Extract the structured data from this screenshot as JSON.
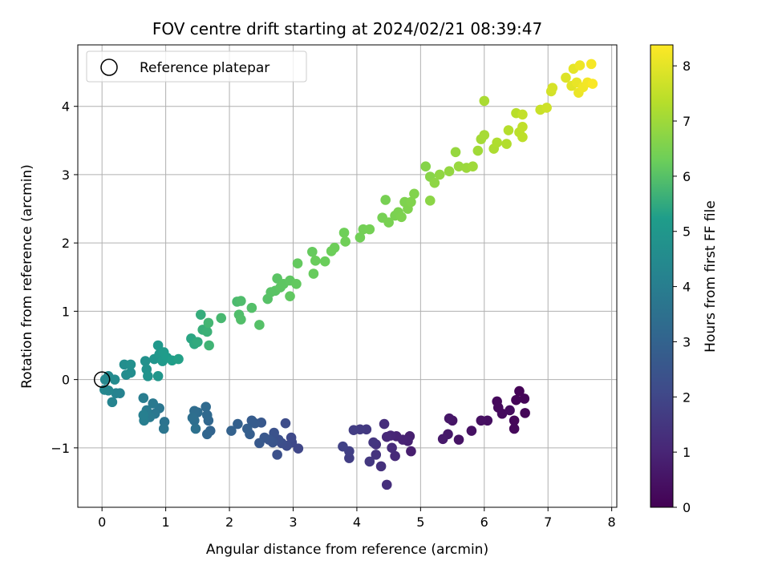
{
  "chart_data": {
    "type": "scatter",
    "title": "FOV centre drift starting at 2024/02/21 08:39:47",
    "xlabel": "Angular distance from reference (arcmin)",
    "ylabel": "Rotation from reference (arcmin)",
    "xlim": [
      -0.38,
      8.08
    ],
    "ylim": [
      -1.87,
      4.9
    ],
    "xticks": [
      0,
      1,
      2,
      3,
      4,
      5,
      6,
      7,
      8
    ],
    "yticks": [
      -1,
      0,
      1,
      2,
      3,
      4
    ],
    "grid": true,
    "legend": {
      "placement": "top-left",
      "label": "Reference platepar"
    },
    "reference_point": {
      "x": 0,
      "y": 0
    },
    "colorbar": {
      "label": "Hours from first FF file",
      "range": [
        0,
        8.38
      ],
      "ticks": [
        0,
        1,
        2,
        3,
        4,
        5,
        6,
        7,
        8
      ],
      "colormap": "viridis",
      "colors": [
        "#440154",
        "#482777",
        "#3f4a8a",
        "#31678e",
        "#26838f",
        "#1f9d8a",
        "#6cce5a",
        "#b6de2b",
        "#fee825"
      ]
    },
    "points": [
      {
        "x": 6.55,
        "y": -0.17,
        "t": 0.05
      },
      {
        "x": 6.63,
        "y": -0.28,
        "t": 0.08
      },
      {
        "x": 6.5,
        "y": -0.3,
        "t": 0.1
      },
      {
        "x": 6.64,
        "y": -0.49,
        "t": 0.13
      },
      {
        "x": 6.47,
        "y": -0.6,
        "t": 0.16
      },
      {
        "x": 6.47,
        "y": -0.72,
        "t": 0.19
      },
      {
        "x": 6.2,
        "y": -0.32,
        "t": 0.22
      },
      {
        "x": 6.22,
        "y": -0.41,
        "t": 0.25
      },
      {
        "x": 6.28,
        "y": -0.5,
        "t": 0.28
      },
      {
        "x": 6.4,
        "y": -0.45,
        "t": 0.31
      },
      {
        "x": 6.05,
        "y": -0.6,
        "t": 0.36
      },
      {
        "x": 5.95,
        "y": -0.6,
        "t": 0.4
      },
      {
        "x": 5.8,
        "y": -0.75,
        "t": 0.45
      },
      {
        "x": 5.6,
        "y": -0.88,
        "t": 0.5
      },
      {
        "x": 5.5,
        "y": -0.6,
        "t": 0.55
      },
      {
        "x": 5.45,
        "y": -0.57,
        "t": 0.6
      },
      {
        "x": 5.43,
        "y": -0.8,
        "t": 0.64
      },
      {
        "x": 5.35,
        "y": -0.87,
        "t": 0.7
      },
      {
        "x": 4.85,
        "y": -1.05,
        "t": 0.8
      },
      {
        "x": 4.83,
        "y": -0.83,
        "t": 0.85
      },
      {
        "x": 4.8,
        "y": -0.9,
        "t": 0.9
      },
      {
        "x": 4.72,
        "y": -0.88,
        "t": 0.95
      },
      {
        "x": 4.62,
        "y": -0.83,
        "t": 1.0
      },
      {
        "x": 4.53,
        "y": -0.82,
        "t": 1.05
      },
      {
        "x": 4.47,
        "y": -0.84,
        "t": 1.1
      },
      {
        "x": 4.6,
        "y": -1.12,
        "t": 1.15
      },
      {
        "x": 4.55,
        "y": -1.0,
        "t": 1.2
      },
      {
        "x": 4.43,
        "y": -0.65,
        "t": 1.25
      },
      {
        "x": 4.47,
        "y": -1.54,
        "t": 1.3
      },
      {
        "x": 4.38,
        "y": -1.27,
        "t": 1.35
      },
      {
        "x": 4.3,
        "y": -0.95,
        "t": 1.4
      },
      {
        "x": 4.3,
        "y": -1.1,
        "t": 1.45
      },
      {
        "x": 4.26,
        "y": -0.92,
        "t": 1.5
      },
      {
        "x": 4.2,
        "y": -1.2,
        "t": 1.55
      },
      {
        "x": 4.15,
        "y": -0.73,
        "t": 1.6
      },
      {
        "x": 4.05,
        "y": -0.73,
        "t": 1.65
      },
      {
        "x": 3.95,
        "y": -0.74,
        "t": 1.7
      },
      {
        "x": 3.88,
        "y": -1.15,
        "t": 1.75
      },
      {
        "x": 3.88,
        "y": -1.05,
        "t": 1.8
      },
      {
        "x": 3.78,
        "y": -0.98,
        "t": 1.85
      },
      {
        "x": 3.08,
        "y": -1.01,
        "t": 2.0
      },
      {
        "x": 2.98,
        "y": -0.92,
        "t": 2.05
      },
      {
        "x": 2.97,
        "y": -0.85,
        "t": 2.1
      },
      {
        "x": 2.9,
        "y": -0.97,
        "t": 2.15
      },
      {
        "x": 2.88,
        "y": -0.64,
        "t": 2.2
      },
      {
        "x": 2.82,
        "y": -0.93,
        "t": 2.25
      },
      {
        "x": 2.77,
        "y": -0.88,
        "t": 2.3
      },
      {
        "x": 2.75,
        "y": -1.1,
        "t": 2.35
      },
      {
        "x": 2.7,
        "y": -0.78,
        "t": 2.4
      },
      {
        "x": 2.68,
        "y": -0.92,
        "t": 2.45
      },
      {
        "x": 2.62,
        "y": -0.88,
        "t": 2.5
      },
      {
        "x": 2.55,
        "y": -0.85,
        "t": 2.55
      },
      {
        "x": 2.5,
        "y": -0.63,
        "t": 2.6
      },
      {
        "x": 2.47,
        "y": -0.93,
        "t": 2.65
      },
      {
        "x": 2.4,
        "y": -0.64,
        "t": 2.7
      },
      {
        "x": 2.35,
        "y": -0.6,
        "t": 2.75
      },
      {
        "x": 2.32,
        "y": -0.8,
        "t": 2.8
      },
      {
        "x": 2.28,
        "y": -0.72,
        "t": 2.85
      },
      {
        "x": 2.13,
        "y": -0.65,
        "t": 2.9
      },
      {
        "x": 2.03,
        "y": -0.75,
        "t": 2.95
      },
      {
        "x": 1.7,
        "y": -0.75,
        "t": 3.05
      },
      {
        "x": 1.65,
        "y": -0.8,
        "t": 3.1
      },
      {
        "x": 1.67,
        "y": -0.6,
        "t": 3.15
      },
      {
        "x": 1.65,
        "y": -0.52,
        "t": 3.2
      },
      {
        "x": 1.63,
        "y": -0.4,
        "t": 3.25
      },
      {
        "x": 1.5,
        "y": -0.48,
        "t": 3.3
      },
      {
        "x": 1.45,
        "y": -0.46,
        "t": 3.35
      },
      {
        "x": 1.45,
        "y": -0.6,
        "t": 3.4
      },
      {
        "x": 1.42,
        "y": -0.56,
        "t": 3.45
      },
      {
        "x": 1.47,
        "y": -0.72,
        "t": 3.5
      },
      {
        "x": 0.98,
        "y": -0.62,
        "t": 3.6
      },
      {
        "x": 0.97,
        "y": -0.72,
        "t": 3.65
      },
      {
        "x": 0.9,
        "y": -0.42,
        "t": 3.7
      },
      {
        "x": 0.83,
        "y": -0.5,
        "t": 3.75
      },
      {
        "x": 0.8,
        "y": -0.35,
        "t": 3.8
      },
      {
        "x": 0.75,
        "y": -0.55,
        "t": 3.85
      },
      {
        "x": 0.7,
        "y": -0.45,
        "t": 3.9
      },
      {
        "x": 0.65,
        "y": -0.27,
        "t": 3.95
      },
      {
        "x": 0.66,
        "y": -0.6,
        "t": 4.0
      },
      {
        "x": 0.65,
        "y": -0.52,
        "t": 4.05
      },
      {
        "x": 0.28,
        "y": -0.2,
        "t": 4.15
      },
      {
        "x": 0.22,
        "y": -0.2,
        "t": 4.2
      },
      {
        "x": 0.16,
        "y": -0.33,
        "t": 4.25
      },
      {
        "x": 0.1,
        "y": -0.16,
        "t": 4.3
      },
      {
        "x": 0.04,
        "y": -0.15,
        "t": 4.35
      },
      {
        "x": 0.05,
        "y": 0.0,
        "t": 4.4
      },
      {
        "x": 0.1,
        "y": 0.05,
        "t": 4.45
      },
      {
        "x": 0.2,
        "y": 0.0,
        "t": 4.5
      },
      {
        "x": 0.38,
        "y": 0.07,
        "t": 4.55
      },
      {
        "x": 0.45,
        "y": 0.1,
        "t": 4.6
      },
      {
        "x": 0.35,
        "y": 0.22,
        "t": 4.65
      },
      {
        "x": 0.45,
        "y": 0.22,
        "t": 4.7
      },
      {
        "x": 0.68,
        "y": 0.27,
        "t": 4.75
      },
      {
        "x": 0.7,
        "y": 0.15,
        "t": 4.8
      },
      {
        "x": 0.72,
        "y": 0.05,
        "t": 4.85
      },
      {
        "x": 0.82,
        "y": 0.3,
        "t": 4.9
      },
      {
        "x": 0.88,
        "y": 0.05,
        "t": 4.95
      },
      {
        "x": 0.9,
        "y": 0.37,
        "t": 5.0
      },
      {
        "x": 0.88,
        "y": 0.5,
        "t": 5.05
      },
      {
        "x": 0.95,
        "y": 0.27,
        "t": 5.1
      },
      {
        "x": 0.97,
        "y": 0.4,
        "t": 5.15
      },
      {
        "x": 1.02,
        "y": 0.32,
        "t": 5.2
      },
      {
        "x": 1.1,
        "y": 0.28,
        "t": 5.25
      },
      {
        "x": 1.2,
        "y": 0.3,
        "t": 5.3
      },
      {
        "x": 1.4,
        "y": 0.6,
        "t": 5.4
      },
      {
        "x": 1.45,
        "y": 0.52,
        "t": 5.45
      },
      {
        "x": 1.5,
        "y": 0.55,
        "t": 5.5
      },
      {
        "x": 1.55,
        "y": 0.95,
        "t": 5.55
      },
      {
        "x": 1.58,
        "y": 0.73,
        "t": 5.6
      },
      {
        "x": 1.65,
        "y": 0.7,
        "t": 5.65
      },
      {
        "x": 1.68,
        "y": 0.5,
        "t": 5.7
      },
      {
        "x": 1.67,
        "y": 0.83,
        "t": 5.75
      },
      {
        "x": 1.87,
        "y": 0.9,
        "t": 5.8
      },
      {
        "x": 2.12,
        "y": 1.14,
        "t": 5.85
      },
      {
        "x": 2.18,
        "y": 1.15,
        "t": 5.9
      },
      {
        "x": 2.15,
        "y": 0.95,
        "t": 5.92
      },
      {
        "x": 2.18,
        "y": 0.88,
        "t": 5.94
      },
      {
        "x": 2.35,
        "y": 1.05,
        "t": 5.96
      },
      {
        "x": 2.47,
        "y": 0.8,
        "t": 5.98
      },
      {
        "x": 2.6,
        "y": 1.18,
        "t": 6.0
      },
      {
        "x": 2.65,
        "y": 1.28,
        "t": 6.02
      },
      {
        "x": 2.72,
        "y": 1.3,
        "t": 6.04
      },
      {
        "x": 2.75,
        "y": 1.48,
        "t": 6.06
      },
      {
        "x": 2.8,
        "y": 1.35,
        "t": 6.08
      },
      {
        "x": 2.85,
        "y": 1.4,
        "t": 6.1
      },
      {
        "x": 2.95,
        "y": 1.45,
        "t": 6.12
      },
      {
        "x": 2.95,
        "y": 1.22,
        "t": 6.14
      },
      {
        "x": 3.05,
        "y": 1.4,
        "t": 6.16
      },
      {
        "x": 3.07,
        "y": 1.7,
        "t": 6.18
      },
      {
        "x": 3.3,
        "y": 1.87,
        "t": 6.2
      },
      {
        "x": 3.32,
        "y": 1.55,
        "t": 6.22
      },
      {
        "x": 3.35,
        "y": 1.74,
        "t": 6.24
      },
      {
        "x": 3.5,
        "y": 1.73,
        "t": 6.26
      },
      {
        "x": 3.6,
        "y": 1.88,
        "t": 6.28
      },
      {
        "x": 3.65,
        "y": 1.93,
        "t": 6.3
      },
      {
        "x": 3.8,
        "y": 2.15,
        "t": 6.32
      },
      {
        "x": 3.82,
        "y": 2.02,
        "t": 6.34
      },
      {
        "x": 4.05,
        "y": 2.08,
        "t": 6.36
      },
      {
        "x": 4.1,
        "y": 2.2,
        "t": 6.38
      },
      {
        "x": 4.2,
        "y": 2.2,
        "t": 6.4
      },
      {
        "x": 4.4,
        "y": 2.37,
        "t": 6.42
      },
      {
        "x": 4.45,
        "y": 2.63,
        "t": 6.44
      },
      {
        "x": 4.5,
        "y": 2.3,
        "t": 6.46
      },
      {
        "x": 4.6,
        "y": 2.4,
        "t": 6.48
      },
      {
        "x": 4.65,
        "y": 2.45,
        "t": 6.5
      },
      {
        "x": 4.7,
        "y": 2.38,
        "t": 6.52
      },
      {
        "x": 4.75,
        "y": 2.6,
        "t": 6.54
      },
      {
        "x": 4.8,
        "y": 2.5,
        "t": 6.56
      },
      {
        "x": 4.85,
        "y": 2.6,
        "t": 6.58
      },
      {
        "x": 4.9,
        "y": 2.72,
        "t": 6.6
      },
      {
        "x": 5.08,
        "y": 3.12,
        "t": 6.64
      },
      {
        "x": 5.15,
        "y": 2.97,
        "t": 6.68
      },
      {
        "x": 5.15,
        "y": 2.62,
        "t": 6.72
      },
      {
        "x": 5.22,
        "y": 2.88,
        "t": 6.76
      },
      {
        "x": 5.3,
        "y": 3.0,
        "t": 6.8
      },
      {
        "x": 5.45,
        "y": 3.05,
        "t": 6.84
      },
      {
        "x": 5.55,
        "y": 3.33,
        "t": 6.88
      },
      {
        "x": 5.6,
        "y": 3.12,
        "t": 6.92
      },
      {
        "x": 5.72,
        "y": 3.1,
        "t": 6.96
      },
      {
        "x": 5.82,
        "y": 3.12,
        "t": 7.0
      },
      {
        "x": 5.9,
        "y": 3.35,
        "t": 7.04
      },
      {
        "x": 5.95,
        "y": 3.52,
        "t": 7.08
      },
      {
        "x": 6.0,
        "y": 3.58,
        "t": 7.12
      },
      {
        "x": 6.0,
        "y": 4.08,
        "t": 7.16
      },
      {
        "x": 6.15,
        "y": 3.38,
        "t": 7.2
      },
      {
        "x": 6.2,
        "y": 3.47,
        "t": 7.24
      },
      {
        "x": 6.35,
        "y": 3.45,
        "t": 7.28
      },
      {
        "x": 6.38,
        "y": 3.65,
        "t": 7.32
      },
      {
        "x": 6.5,
        "y": 3.9,
        "t": 7.36
      },
      {
        "x": 6.55,
        "y": 3.62,
        "t": 7.4
      },
      {
        "x": 6.6,
        "y": 3.55,
        "t": 7.44
      },
      {
        "x": 6.6,
        "y": 3.7,
        "t": 7.48
      },
      {
        "x": 6.6,
        "y": 3.88,
        "t": 7.52
      },
      {
        "x": 6.88,
        "y": 3.95,
        "t": 7.6
      },
      {
        "x": 6.98,
        "y": 3.98,
        "t": 7.68
      },
      {
        "x": 7.05,
        "y": 4.22,
        "t": 7.74
      },
      {
        "x": 7.07,
        "y": 4.27,
        "t": 7.8
      },
      {
        "x": 7.28,
        "y": 4.42,
        "t": 7.9
      },
      {
        "x": 7.37,
        "y": 4.3,
        "t": 7.96
      },
      {
        "x": 7.4,
        "y": 4.55,
        "t": 8.02
      },
      {
        "x": 7.45,
        "y": 4.35,
        "t": 8.06
      },
      {
        "x": 7.48,
        "y": 4.2,
        "t": 8.1
      },
      {
        "x": 7.5,
        "y": 4.6,
        "t": 8.14
      },
      {
        "x": 7.55,
        "y": 4.28,
        "t": 8.18
      },
      {
        "x": 7.62,
        "y": 4.35,
        "t": 8.22
      },
      {
        "x": 7.68,
        "y": 4.62,
        "t": 8.26
      },
      {
        "x": 7.7,
        "y": 4.33,
        "t": 8.3
      }
    ]
  }
}
